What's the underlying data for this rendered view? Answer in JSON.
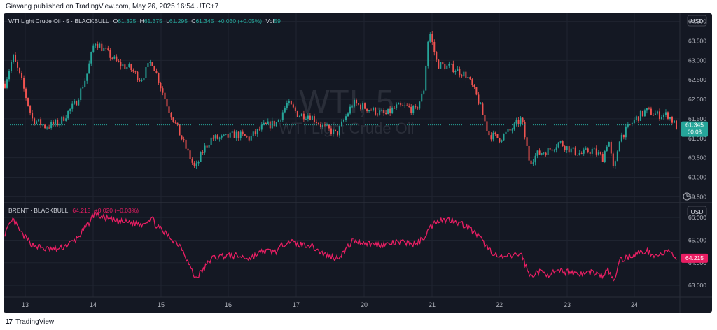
{
  "header": {
    "text": "Giavang published on TradingView.com, May 26, 2025 16:54 UTC+7"
  },
  "footer": {
    "logo": "17",
    "brand": "TradingView"
  },
  "colors": {
    "bg": "#141823",
    "up": "#26a69a",
    "down": "#ef5350",
    "brent_line": "#e91e63",
    "axis_text": "#b2b5be",
    "grid": "#1f2430"
  },
  "wti": {
    "legend": {
      "title": "WTI Light Crude Oil · 5 · BLACKBULL",
      "o_label": "O",
      "o_value": "61.325",
      "h_label": "H",
      "h_value": "61.375",
      "l_label": "L",
      "l_value": "61.295",
      "c_label": "C",
      "c_value": "61.345",
      "change": "+0.030 (+0.05%)",
      "vol_label": "Vol",
      "vol_value": "59"
    },
    "watermark_symbol": "WTI, 5",
    "watermark_desc": "WTI Light Crude Oil",
    "currency": "USD",
    "price_tag": "61.345",
    "countdown": "00:03",
    "axis_labels": [
      "64.000",
      "63.500",
      "63.000",
      "62.500",
      "62.000",
      "61.500",
      "61.000",
      "60.500",
      "60.000",
      "59.500"
    ]
  },
  "brent": {
    "legend": {
      "title": "BRENT · BLACKBULL",
      "value": "64.215",
      "change": "+0.020 (+0.03%)"
    },
    "currency": "USD",
    "price_tag": "64.215",
    "axis_labels": [
      "66.000",
      "65.000",
      "64.000",
      "63.000"
    ]
  },
  "x_axis_labels": [
    "13",
    "14",
    "15",
    "16",
    "17",
    "20",
    "21",
    "22",
    "23",
    "24"
  ],
  "chart_data": [
    {
      "type": "candlestick",
      "title": "WTI Light Crude Oil · 5 · BLACKBULL",
      "ylim": [
        59.4,
        64.1
      ],
      "ylabel": "USD",
      "x_ticks": [
        "13",
        "14",
        "15",
        "16",
        "17",
        "20",
        "21",
        "22",
        "23",
        "24"
      ],
      "approx_close_path": [
        [
          0,
          62.4
        ],
        [
          0.3,
          63.1
        ],
        [
          0.6,
          62.5
        ],
        [
          1.0,
          61.5
        ],
        [
          1.5,
          61.3
        ],
        [
          2.0,
          61.4
        ],
        [
          2.6,
          61.9
        ],
        [
          3.0,
          62.6
        ],
        [
          3.3,
          63.5
        ],
        [
          3.6,
          63.3
        ],
        [
          4.2,
          62.9
        ],
        [
          4.6,
          62.8
        ],
        [
          5.0,
          62.5
        ],
        [
          5.4,
          63.0
        ],
        [
          5.6,
          62.6
        ],
        [
          6.0,
          61.8
        ],
        [
          6.5,
          61.0
        ],
        [
          7.0,
          60.2
        ],
        [
          7.3,
          60.7
        ],
        [
          7.6,
          61.0
        ],
        [
          8.0,
          61.0
        ],
        [
          8.5,
          61.1
        ],
        [
          9.0,
          61.0
        ],
        [
          9.5,
          61.3
        ],
        [
          10.0,
          61.4
        ],
        [
          10.4,
          61.9
        ],
        [
          10.8,
          61.6
        ],
        [
          11.2,
          61.6
        ],
        [
          11.7,
          61.3
        ],
        [
          12.2,
          61.1
        ],
        [
          12.5,
          61.5
        ],
        [
          12.8,
          61.9
        ],
        [
          13.2,
          61.8
        ],
        [
          13.6,
          61.7
        ],
        [
          14.0,
          61.6
        ],
        [
          14.4,
          61.8
        ],
        [
          14.8,
          61.8
        ],
        [
          15.1,
          61.7
        ],
        [
          15.4,
          62.2
        ],
        [
          15.6,
          63.8
        ],
        [
          15.9,
          62.9
        ],
        [
          16.5,
          62.8
        ],
        [
          17.0,
          62.6
        ],
        [
          17.4,
          62.0
        ],
        [
          17.8,
          61.1
        ],
        [
          18.2,
          61.0
        ],
        [
          18.6,
          61.2
        ],
        [
          19.0,
          61.5
        ],
        [
          19.3,
          60.4
        ],
        [
          19.6,
          60.6
        ],
        [
          20.0,
          60.7
        ],
        [
          20.4,
          60.9
        ],
        [
          20.8,
          60.7
        ],
        [
          21.2,
          60.6
        ],
        [
          21.6,
          60.7
        ],
        [
          22.0,
          60.5
        ],
        [
          22.2,
          61.0
        ],
        [
          22.4,
          60.1
        ],
        [
          22.6,
          61.0
        ],
        [
          23.2,
          61.5
        ],
        [
          23.6,
          61.7
        ],
        [
          24.0,
          61.6
        ],
        [
          24.4,
          61.6
        ],
        [
          24.7,
          61.3
        ]
      ]
    },
    {
      "type": "line",
      "title": "BRENT · BLACKBULL",
      "ylim": [
        62.6,
        66.5
      ],
      "ylabel": "USD",
      "x_ticks": [
        "13",
        "14",
        "15",
        "16",
        "17",
        "20",
        "21",
        "22",
        "23",
        "24"
      ],
      "approx_path": [
        [
          0,
          65.3
        ],
        [
          0.3,
          65.9
        ],
        [
          0.6,
          65.3
        ],
        [
          1.0,
          64.8
        ],
        [
          1.5,
          64.6
        ],
        [
          2.0,
          64.6
        ],
        [
          2.6,
          65.0
        ],
        [
          3.0,
          65.6
        ],
        [
          3.3,
          66.2
        ],
        [
          3.6,
          66.0
        ],
        [
          4.2,
          65.8
        ],
        [
          4.6,
          65.8
        ],
        [
          5.0,
          65.7
        ],
        [
          5.4,
          66.0
        ],
        [
          5.6,
          65.6
        ],
        [
          6.0,
          65.2
        ],
        [
          6.5,
          64.7
        ],
        [
          7.0,
          63.3
        ],
        [
          7.3,
          63.7
        ],
        [
          7.6,
          64.2
        ],
        [
          8.0,
          64.3
        ],
        [
          8.5,
          64.3
        ],
        [
          9.0,
          64.2
        ],
        [
          9.5,
          64.5
        ],
        [
          10.0,
          64.5
        ],
        [
          10.4,
          65.0
        ],
        [
          10.8,
          64.8
        ],
        [
          11.2,
          64.8
        ],
        [
          11.7,
          64.4
        ],
        [
          12.2,
          64.2
        ],
        [
          12.5,
          64.5
        ],
        [
          12.8,
          65.0
        ],
        [
          13.2,
          64.9
        ],
        [
          13.6,
          64.8
        ],
        [
          14.0,
          64.8
        ],
        [
          14.4,
          64.9
        ],
        [
          14.8,
          64.9
        ],
        [
          15.1,
          64.8
        ],
        [
          15.4,
          65.1
        ],
        [
          15.6,
          65.5
        ],
        [
          15.9,
          65.9
        ],
        [
          16.5,
          65.9
        ],
        [
          17.0,
          65.6
        ],
        [
          17.4,
          65.2
        ],
        [
          17.8,
          64.6
        ],
        [
          18.2,
          64.2
        ],
        [
          18.6,
          64.3
        ],
        [
          19.0,
          64.4
        ],
        [
          19.3,
          63.4
        ],
        [
          19.6,
          63.6
        ],
        [
          20.0,
          63.5
        ],
        [
          20.4,
          63.6
        ],
        [
          20.8,
          63.6
        ],
        [
          21.2,
          63.5
        ],
        [
          21.6,
          63.6
        ],
        [
          22.0,
          63.4
        ],
        [
          22.2,
          63.7
        ],
        [
          22.4,
          63.1
        ],
        [
          22.6,
          64.1
        ],
        [
          23.2,
          64.4
        ],
        [
          23.6,
          64.5
        ],
        [
          24.0,
          64.3
        ],
        [
          24.4,
          64.5
        ],
        [
          24.7,
          64.2
        ]
      ]
    }
  ]
}
